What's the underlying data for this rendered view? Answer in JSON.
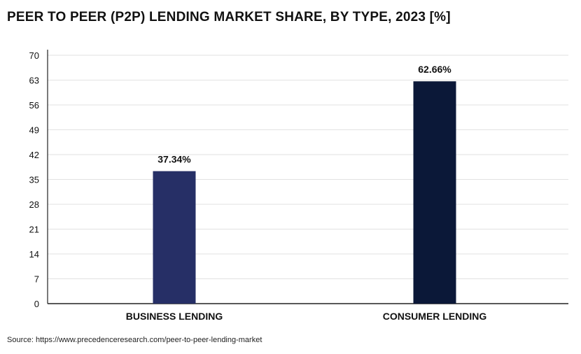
{
  "title": "PEER TO PEER (P2P) LENDING MARKET SHARE, BY TYPE, 2023 [%]",
  "source": "Source: https://www.precedenceresearch.com/peer-to-peer-lending-market",
  "chart_data": {
    "type": "bar",
    "title": "PEER TO PEER (P2P) LENDING MARKET SHARE, BY TYPE, 2023 [%]",
    "categories": [
      "BUSINESS LENDING",
      "CONSUMER LENDING"
    ],
    "values": [
      37.34,
      62.66
    ],
    "data_labels": [
      "37.34%",
      "62.66%"
    ],
    "bar_colors": [
      "#262f66",
      "#0b1838"
    ],
    "ylim": [
      0,
      70
    ],
    "yticks": [
      0,
      7,
      14,
      21,
      28,
      35,
      42,
      49,
      56,
      63,
      70
    ],
    "xlabel": "",
    "ylabel": "",
    "grid": true,
    "legend": "none"
  }
}
